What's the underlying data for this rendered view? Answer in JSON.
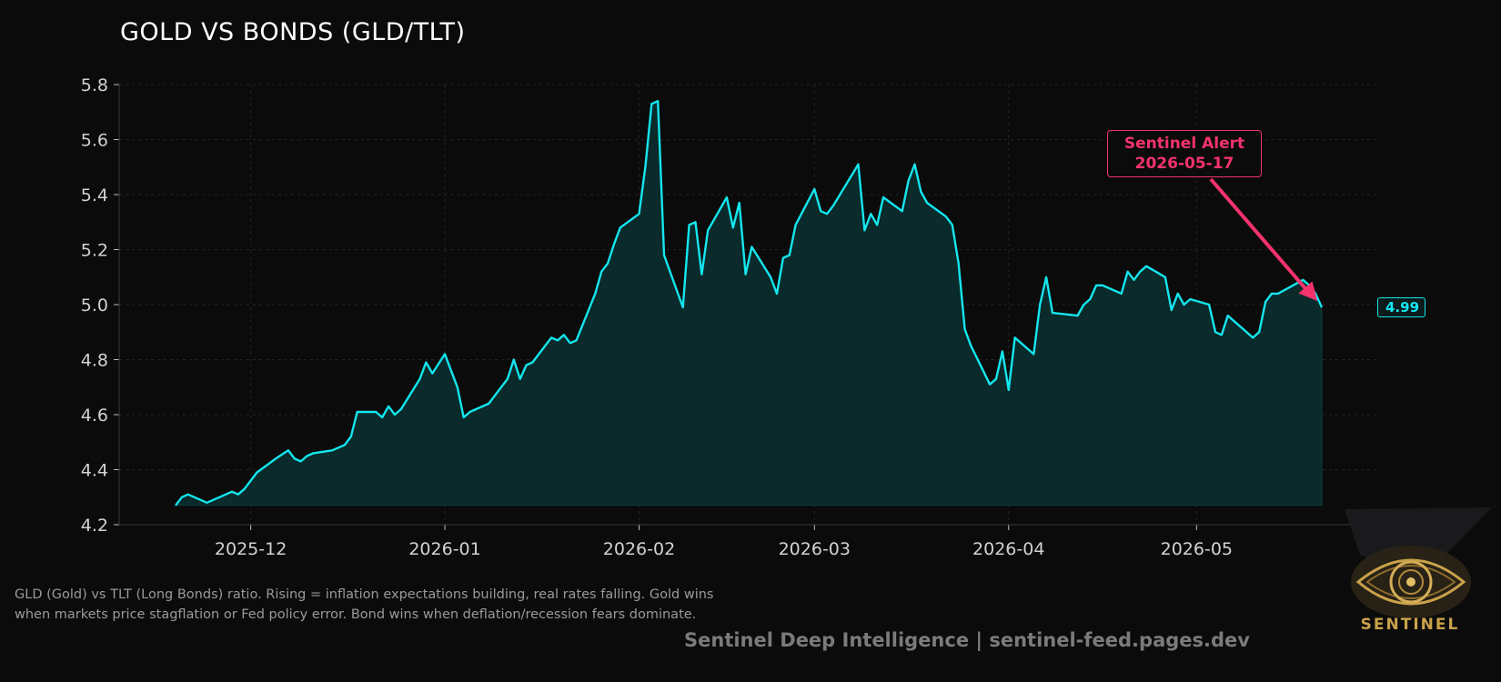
{
  "chart_data": {
    "type": "area",
    "title": "GOLD VS BONDS (GLD/TLT)",
    "xlabel": "",
    "ylabel": "",
    "ylim": [
      4.2,
      5.8
    ],
    "xlim": [
      "2025-11-10",
      "2026-05-30"
    ],
    "y_ticks": [
      "4.2",
      "4.4",
      "4.6",
      "4.8",
      "5.0",
      "5.2",
      "5.4",
      "5.6",
      "5.8"
    ],
    "x_ticks": [
      "2025-12",
      "2026-01",
      "2026-02",
      "2026-03",
      "2026-04",
      "2026-05"
    ],
    "grid": true,
    "line_color": "#14e6ee",
    "fill_color": "#0a2a2b",
    "background": "#0b0b0b",
    "series": [
      {
        "points": [
          [
            "2025-11-19",
            4.27
          ],
          [
            "2025-11-20",
            4.3
          ],
          [
            "2025-11-21",
            4.31
          ],
          [
            "2025-11-24",
            4.28
          ],
          [
            "2025-11-26",
            4.3
          ],
          [
            "2025-11-28",
            4.32
          ],
          [
            "2025-11-29",
            4.31
          ],
          [
            "2025-11-30",
            4.33
          ],
          [
            "2025-12-02",
            4.39
          ],
          [
            "2025-12-05",
            4.44
          ],
          [
            "2025-12-07",
            4.47
          ],
          [
            "2025-12-08",
            4.44
          ],
          [
            "2025-12-09",
            4.43
          ],
          [
            "2025-12-10",
            4.45
          ],
          [
            "2025-12-11",
            4.46
          ],
          [
            "2025-12-14",
            4.47
          ],
          [
            "2025-12-15",
            4.48
          ],
          [
            "2025-12-16",
            4.49
          ],
          [
            "2025-12-17",
            4.52
          ],
          [
            "2025-12-18",
            4.61
          ],
          [
            "2025-12-21",
            4.61
          ],
          [
            "2025-12-22",
            4.59
          ],
          [
            "2025-12-23",
            4.63
          ],
          [
            "2025-12-24",
            4.6
          ],
          [
            "2025-12-25",
            4.62
          ],
          [
            "2025-12-28",
            4.73
          ],
          [
            "2025-12-29",
            4.79
          ],
          [
            "2025-12-30",
            4.75
          ],
          [
            "2026-01-01",
            4.82
          ],
          [
            "2026-01-03",
            4.7
          ],
          [
            "2026-01-04",
            4.59
          ],
          [
            "2026-01-05",
            4.61
          ],
          [
            "2026-01-06",
            4.62
          ],
          [
            "2026-01-08",
            4.64
          ],
          [
            "2026-01-11",
            4.73
          ],
          [
            "2026-01-12",
            4.8
          ],
          [
            "2026-01-13",
            4.73
          ],
          [
            "2026-01-14",
            4.78
          ],
          [
            "2026-01-15",
            4.79
          ],
          [
            "2026-01-18",
            4.88
          ],
          [
            "2026-01-19",
            4.87
          ],
          [
            "2026-01-20",
            4.89
          ],
          [
            "2026-01-21",
            4.86
          ],
          [
            "2026-01-22",
            4.87
          ],
          [
            "2026-01-25",
            5.04
          ],
          [
            "2026-01-26",
            5.12
          ],
          [
            "2026-01-27",
            5.15
          ],
          [
            "2026-01-28",
            5.22
          ],
          [
            "2026-01-29",
            5.28
          ],
          [
            "2026-02-01",
            5.33
          ],
          [
            "2026-02-02",
            5.5
          ],
          [
            "2026-02-03",
            5.73
          ],
          [
            "2026-02-04",
            5.74
          ],
          [
            "2026-02-05",
            5.18
          ],
          [
            "2026-02-08",
            4.99
          ],
          [
            "2026-02-09",
            5.29
          ],
          [
            "2026-02-10",
            5.3
          ],
          [
            "2026-02-11",
            5.11
          ],
          [
            "2026-02-12",
            5.27
          ],
          [
            "2026-02-15",
            5.39
          ],
          [
            "2026-02-16",
            5.28
          ],
          [
            "2026-02-17",
            5.37
          ],
          [
            "2026-02-18",
            5.11
          ],
          [
            "2026-02-19",
            5.21
          ],
          [
            "2026-02-22",
            5.1
          ],
          [
            "2026-02-23",
            5.04
          ],
          [
            "2026-02-24",
            5.17
          ],
          [
            "2026-02-25",
            5.18
          ],
          [
            "2026-02-26",
            5.29
          ],
          [
            "2026-03-01",
            5.42
          ],
          [
            "2026-03-02",
            5.34
          ],
          [
            "2026-03-03",
            5.33
          ],
          [
            "2026-03-04",
            5.36
          ],
          [
            "2026-03-08",
            5.51
          ],
          [
            "2026-03-09",
            5.27
          ],
          [
            "2026-03-10",
            5.33
          ],
          [
            "2026-03-11",
            5.29
          ],
          [
            "2026-03-12",
            5.39
          ],
          [
            "2026-03-15",
            5.34
          ],
          [
            "2026-03-16",
            5.45
          ],
          [
            "2026-03-17",
            5.51
          ],
          [
            "2026-03-18",
            5.41
          ],
          [
            "2026-03-19",
            5.37
          ],
          [
            "2026-03-22",
            5.32
          ],
          [
            "2026-03-23",
            5.29
          ],
          [
            "2026-03-24",
            5.15
          ],
          [
            "2026-03-25",
            4.91
          ],
          [
            "2026-03-26",
            4.85
          ],
          [
            "2026-03-29",
            4.71
          ],
          [
            "2026-03-30",
            4.73
          ],
          [
            "2026-03-31",
            4.83
          ],
          [
            "2026-04-01",
            4.69
          ],
          [
            "2026-04-02",
            4.88
          ],
          [
            "2026-04-05",
            4.82
          ],
          [
            "2026-04-06",
            5.0
          ],
          [
            "2026-04-07",
            5.1
          ],
          [
            "2026-04-08",
            4.97
          ],
          [
            "2026-04-12",
            4.96
          ],
          [
            "2026-04-13",
            5.0
          ],
          [
            "2026-04-14",
            5.02
          ],
          [
            "2026-04-15",
            5.07
          ],
          [
            "2026-04-16",
            5.07
          ],
          [
            "2026-04-19",
            5.04
          ],
          [
            "2026-04-20",
            5.12
          ],
          [
            "2026-04-21",
            5.09
          ],
          [
            "2026-04-22",
            5.12
          ],
          [
            "2026-04-23",
            5.14
          ],
          [
            "2026-04-26",
            5.1
          ],
          [
            "2026-04-27",
            4.98
          ],
          [
            "2026-04-28",
            5.04
          ],
          [
            "2026-04-29",
            5.0
          ],
          [
            "2026-04-30",
            5.02
          ],
          [
            "2026-05-03",
            5.0
          ],
          [
            "2026-05-04",
            4.9
          ],
          [
            "2026-05-05",
            4.89
          ],
          [
            "2026-05-06",
            4.96
          ],
          [
            "2026-05-10",
            4.88
          ],
          [
            "2026-05-11",
            4.9
          ],
          [
            "2026-05-12",
            5.01
          ],
          [
            "2026-05-13",
            5.04
          ],
          [
            "2026-05-14",
            5.04
          ],
          [
            "2026-05-18",
            5.09
          ],
          [
            "2026-05-19",
            5.07
          ],
          [
            "2026-05-20",
            5.04
          ],
          [
            "2026-05-21",
            4.99
          ]
        ]
      }
    ],
    "last_value_label": "4.99",
    "annotation": {
      "text_line1": "Sentinel Alert",
      "text_line2": "2026-05-17",
      "color": "#f4336d",
      "target": [
        "2026-05-20",
        5.01
      ]
    }
  },
  "caption": "GLD (Gold) vs TLT (Long Bonds) ratio. Rising = inflation expectations building, real rates falling. Gold wins when markets price stagflation or Fed policy error. Bond wins when deflation/recession fears dominate.",
  "footer": "Sentinel Deep Intelligence  |  sentinel-feed.pages.dev",
  "brand": {
    "text": "SENTINEL",
    "icon": "eye-logo-icon",
    "color": "#c9a24a"
  }
}
